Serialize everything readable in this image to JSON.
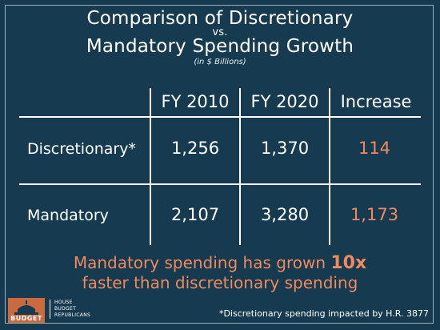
{
  "title_line1": "Comparison of Discretionary",
  "title_vs": "vs.",
  "title_line2": "Mandatory Spending Growth",
  "subtitle": "(in $ Billions)",
  "chart_data": {
    "type": "table",
    "columns": [
      "FY 2010",
      "FY 2020",
      "Increase"
    ],
    "rows": [
      {
        "label": "Discretionary*",
        "values": [
          "1,256",
          "1,370",
          "114"
        ]
      },
      {
        "label": "Mandatory",
        "values": [
          "2,107",
          "3,280",
          "1,173"
        ]
      }
    ]
  },
  "headline": {
    "part1": "Mandatory spending has grown ",
    "highlight": "10x",
    "part2": "faster than discretionary spending"
  },
  "footnote": "*Discretionary spending impacted by H.R. 3877",
  "logo": {
    "word": "BUDGET",
    "sub_line1": "HOUSE",
    "sub_line2": "BUDGET",
    "sub_line3": "REPUBLICANS"
  },
  "colors": {
    "background": "#163a4f",
    "accent": "#f08a5d",
    "text": "#ffffff",
    "grid": "#ffffff"
  }
}
